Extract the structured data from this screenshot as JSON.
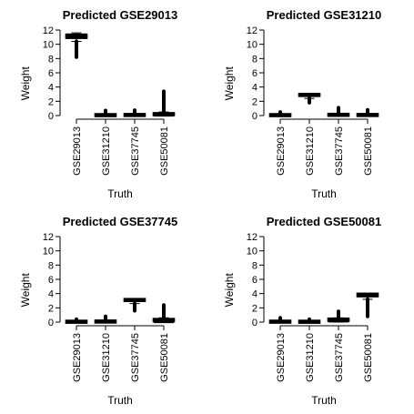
{
  "chart_data": [
    {
      "type": "box",
      "title": "Predicted GSE29013",
      "xlabel": "Truth",
      "ylabel": "Weight",
      "ylim": [
        0,
        12
      ],
      "yticks": [
        0,
        2,
        4,
        6,
        8,
        10,
        12
      ],
      "categories": [
        "GSE29013",
        "GSE31210",
        "GSE37745",
        "GSE50081"
      ],
      "boxes": [
        {
          "min": 10.4,
          "q1": 10.9,
          "median": 11.1,
          "q3": 11.35,
          "max": 11.6,
          "outliers_low": 8.2,
          "outliers_high": null
        },
        {
          "min": 0.0,
          "q1": 0.0,
          "median": 0.02,
          "q3": 0.06,
          "max": 0.15,
          "outliers_low": null,
          "outliers_high": 0.7
        },
        {
          "min": 0.0,
          "q1": 0.0,
          "median": 0.03,
          "q3": 0.08,
          "max": 0.2,
          "outliers_low": null,
          "outliers_high": 0.75
        },
        {
          "min": 0.0,
          "q1": 0.0,
          "median": 0.05,
          "q3": 0.2,
          "max": 0.5,
          "outliers_low": null,
          "outliers_high": 3.4
        }
      ]
    },
    {
      "type": "box",
      "title": "Predicted GSE31210",
      "xlabel": "Truth",
      "ylabel": "Weight",
      "ylim": [
        0,
        12
      ],
      "yticks": [
        0,
        2,
        4,
        6,
        8,
        10,
        12
      ],
      "categories": [
        "GSE29013",
        "GSE31210",
        "GSE37745",
        "GSE50081"
      ],
      "boxes": [
        {
          "min": 0.0,
          "q1": 0.0,
          "median": 0.02,
          "q3": 0.06,
          "max": 0.15,
          "outliers_low": null,
          "outliers_high": 0.5
        },
        {
          "min": 2.4,
          "q1": 2.65,
          "median": 2.8,
          "q3": 2.9,
          "max": 3.0,
          "outliers_low": 1.8,
          "outliers_high": null
        },
        {
          "min": 0.0,
          "q1": 0.0,
          "median": 0.03,
          "q3": 0.1,
          "max": 0.25,
          "outliers_low": null,
          "outliers_high": 1.1
        },
        {
          "min": 0.0,
          "q1": 0.0,
          "median": 0.02,
          "q3": 0.08,
          "max": 0.2,
          "outliers_low": null,
          "outliers_high": 0.8
        }
      ]
    },
    {
      "type": "box",
      "title": "Predicted GSE37745",
      "xlabel": "Truth",
      "ylabel": "Weight",
      "ylim": [
        0,
        12
      ],
      "yticks": [
        0,
        2,
        4,
        6,
        8,
        10,
        12
      ],
      "categories": [
        "GSE29013",
        "GSE31210",
        "GSE37745",
        "GSE50081"
      ],
      "boxes": [
        {
          "min": 0.0,
          "q1": 0.0,
          "median": 0.02,
          "q3": 0.05,
          "max": 0.12,
          "outliers_low": null,
          "outliers_high": 0.4
        },
        {
          "min": 0.0,
          "q1": 0.0,
          "median": 0.03,
          "q3": 0.08,
          "max": 0.2,
          "outliers_low": null,
          "outliers_high": 0.8
        },
        {
          "min": 2.6,
          "q1": 2.85,
          "median": 3.0,
          "q3": 3.1,
          "max": 3.25,
          "outliers_low": 1.6,
          "outliers_high": null
        },
        {
          "min": 0.0,
          "q1": 0.0,
          "median": 0.05,
          "q3": 0.3,
          "max": 0.6,
          "outliers_low": null,
          "outliers_high": 2.4
        }
      ]
    },
    {
      "type": "box",
      "title": "Predicted GSE50081",
      "xlabel": "Truth",
      "ylabel": "Weight",
      "ylim": [
        0,
        12
      ],
      "yticks": [
        0,
        2,
        4,
        6,
        8,
        10,
        12
      ],
      "categories": [
        "GSE29013",
        "GSE31210",
        "GSE37745",
        "GSE50081"
      ],
      "boxes": [
        {
          "min": 0.0,
          "q1": 0.0,
          "median": 0.02,
          "q3": 0.06,
          "max": 0.15,
          "outliers_low": null,
          "outliers_high": 0.6
        },
        {
          "min": 0.0,
          "q1": 0.0,
          "median": 0.02,
          "q3": 0.05,
          "max": 0.12,
          "outliers_low": null,
          "outliers_high": 0.4
        },
        {
          "min": 0.0,
          "q1": 0.05,
          "median": 0.15,
          "q3": 0.35,
          "max": 0.6,
          "outliers_low": null,
          "outliers_high": 1.5
        },
        {
          "min": 3.2,
          "q1": 3.5,
          "median": 3.7,
          "q3": 3.85,
          "max": 4.0,
          "outliers_low": 0.8,
          "outliers_high": null
        }
      ]
    }
  ]
}
